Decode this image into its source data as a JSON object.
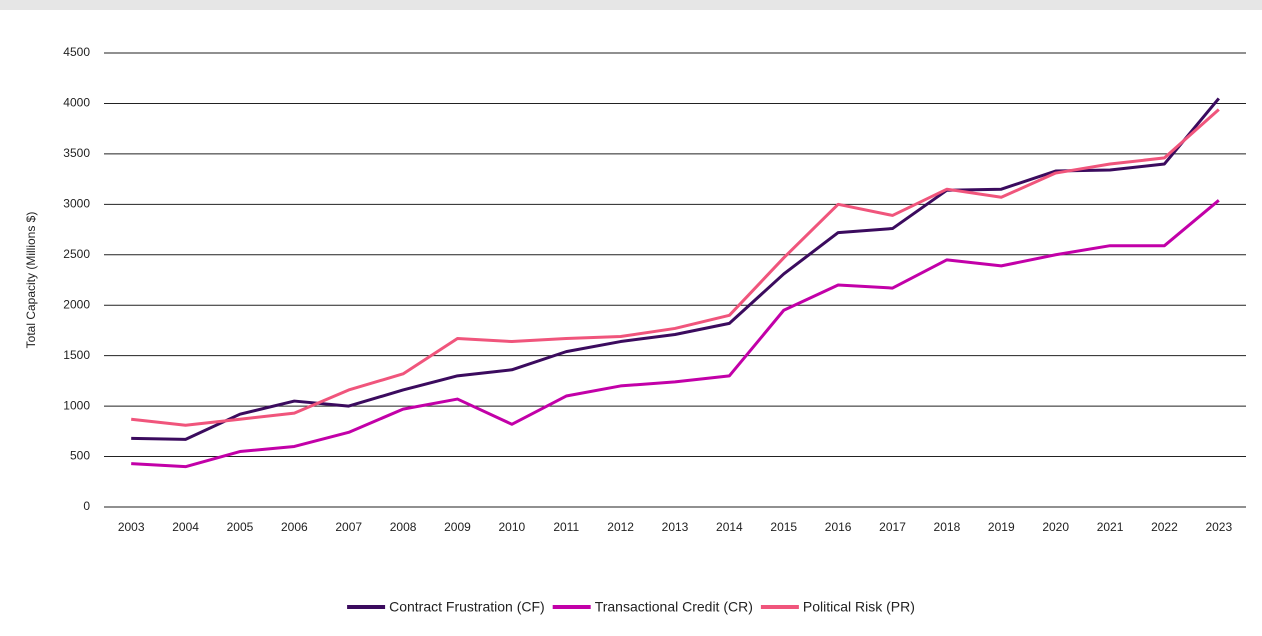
{
  "chart_data": {
    "type": "line",
    "y_label": "Total Capacity (Millions $)",
    "categories": [
      "2003",
      "2004",
      "2005",
      "2006",
      "2007",
      "2008",
      "2009",
      "2010",
      "2011",
      "2012",
      "2013",
      "2014",
      "2015",
      "2016",
      "2017",
      "2018",
      "2019",
      "2020",
      "2021",
      "2022",
      "2023"
    ],
    "series": [
      {
        "name": "Contract Frustration (CF)",
        "color": "#3b0b5e",
        "values": [
          680,
          670,
          920,
          1050,
          1000,
          1160,
          1300,
          1360,
          1540,
          1640,
          1710,
          1820,
          2310,
          2720,
          2760,
          3140,
          3150,
          3330,
          3340,
          3400,
          4050
        ]
      },
      {
        "name": "Transactional Credit (CR)",
        "color": "#c200a8",
        "values": [
          430,
          400,
          550,
          600,
          740,
          970,
          1070,
          820,
          1100,
          1200,
          1240,
          1300,
          1950,
          2200,
          2170,
          2450,
          2390,
          2500,
          2590,
          2590,
          3040
        ]
      },
      {
        "name": "Political Risk (PR)",
        "color": "#f0557c",
        "values": [
          870,
          810,
          870,
          930,
          1160,
          1320,
          1670,
          1640,
          1670,
          1690,
          1770,
          1900,
          2470,
          3000,
          2890,
          3150,
          3070,
          3310,
          3400,
          3460,
          3940
        ]
      }
    ],
    "ylim": [
      0,
      4500
    ],
    "yticks": [
      0,
      500,
      1000,
      1500,
      2000,
      2500,
      3000,
      3500,
      4000,
      4500
    ],
    "grid": true,
    "legend": "bottom"
  }
}
